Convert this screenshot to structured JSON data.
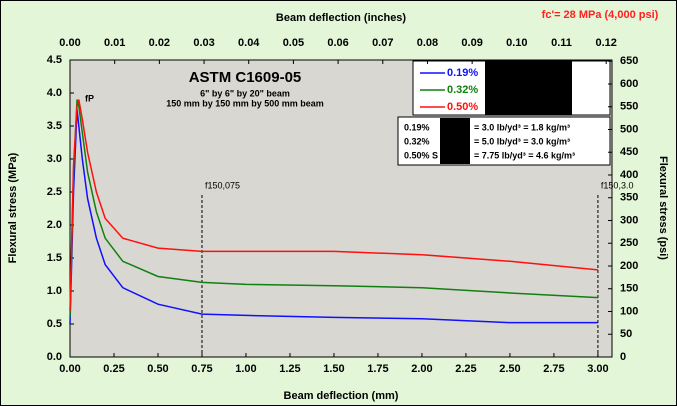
{
  "chart_data": {
    "type": "line",
    "title": "ASTM C1609-05",
    "subtitle": [
      "6\" by 6\" by 20\" beam",
      "150 mm by 150 mm by 500 mm beam"
    ],
    "annotation": "fc'= 28 MPa (4,000 psi)",
    "peak_label": "fP",
    "markers": [
      {
        "x": 0.75,
        "label": "f150,075"
      },
      {
        "x": 3.0,
        "label": "f150,3.0"
      }
    ],
    "xlabel": "Beam deflection (mm)",
    "x2label": "Beam deflection (inches)",
    "ylabel": "Flexural stress (MPa)",
    "y2label": "Flexural stress (psi)",
    "x": [
      0,
      0.02,
      0.04,
      0.05,
      0.07,
      0.1,
      0.15,
      0.2,
      0.3,
      0.5,
      0.75,
      1.0,
      1.5,
      2.0,
      2.5,
      3.0
    ],
    "series": [
      {
        "name": "0.19%",
        "color": "#1010ff",
        "values": [
          0.5,
          2.5,
          3.75,
          3.5,
          3.0,
          2.4,
          1.8,
          1.4,
          1.05,
          0.8,
          0.65,
          0.63,
          0.6,
          0.58,
          0.52,
          0.52
        ]
      },
      {
        "name": "0.32%",
        "color": "#108010",
        "values": [
          0.6,
          2.8,
          3.9,
          3.8,
          3.4,
          2.8,
          2.2,
          1.8,
          1.45,
          1.22,
          1.13,
          1.1,
          1.08,
          1.05,
          0.97,
          0.9
        ]
      },
      {
        "name": "0.50%",
        "color": "#ff1010",
        "values": [
          0.7,
          2.9,
          3.8,
          3.9,
          3.6,
          3.1,
          2.5,
          2.1,
          1.8,
          1.65,
          1.6,
          1.6,
          1.6,
          1.55,
          1.45,
          1.32
        ]
      }
    ],
    "table": [
      {
        "fraction": "0.19%",
        "text": "= 3.0 lb/yd³ = 1.8 kg/m³"
      },
      {
        "fraction": "0.32%",
        "text": "= 5.0 lb/yd³ = 3.0 kg/m³"
      },
      {
        "fraction": "0.50% S",
        "text": "= 7.75 lb/yd³ = 4.6 kg/m³"
      }
    ],
    "xlim": [
      0,
      3.08
    ],
    "xticks": [
      {
        "value": 0,
        "label": "0.00"
      },
      0.25,
      {
        "value": 0.5,
        "label": "0.50"
      },
      0.75,
      {
        "value": 1,
        "label": "1.00"
      },
      1.25,
      {
        "value": 1.5,
        "label": "1.50"
      },
      1.75,
      {
        "value": 2,
        "label": "2.00"
      },
      2.25,
      {
        "value": 2.5,
        "label": "2.50"
      },
      2.75,
      {
        "value": 3,
        "label": "3.00"
      }
    ],
    "x2lim": [
      0,
      0.1213
    ],
    "x2ticks": [
      {
        "value": 0,
        "label": "0.00"
      },
      0.01,
      0.02,
      0.03,
      0.04,
      0.05,
      0.06,
      0.07,
      0.08,
      0.09,
      {
        "value": 0.1,
        "label": "0.10"
      },
      0.11,
      0.12
    ],
    "ylim": [
      0,
      4.5
    ],
    "yticks": [
      {
        "value": 0,
        "label": "0.0"
      },
      0.5,
      {
        "value": 1,
        "label": "1.0"
      },
      1.5,
      {
        "value": 2,
        "label": "2.0"
      },
      2.5,
      {
        "value": 3,
        "label": "3.0"
      },
      3.5,
      {
        "value": 4,
        "label": "4.0"
      },
      4.5
    ],
    "y2lim": [
      0,
      652.7
    ],
    "y2ticks": [
      0,
      50,
      100,
      150,
      200,
      250,
      300,
      350,
      400,
      450,
      500,
      550,
      600,
      650
    ],
    "grid": false
  }
}
